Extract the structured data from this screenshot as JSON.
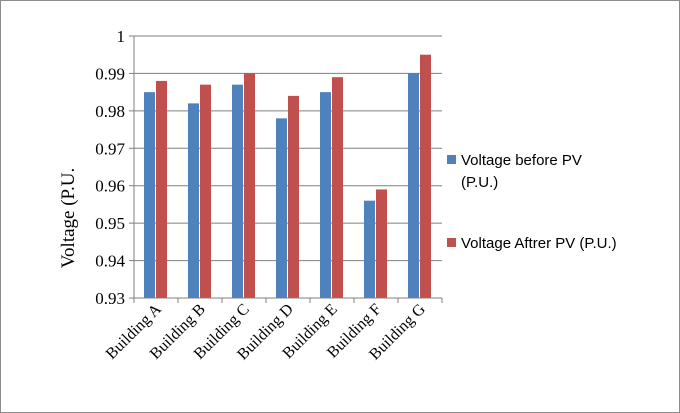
{
  "chart_data": {
    "type": "bar",
    "title": "",
    "xlabel": "",
    "ylabel": "Voltage (P.U.",
    "ylim": [
      0.93,
      1.0
    ],
    "yticks": [
      "0.93",
      "0.94",
      "0.95",
      "0.96",
      "0.97",
      "0.98",
      "0.99",
      "1"
    ],
    "categories": [
      "Building A",
      "Building B",
      "Building C",
      "Building D",
      "Building E",
      "Building F",
      "Building G"
    ],
    "series": [
      {
        "name": "Voltage before PV (P.U.)",
        "color": "#4f81bd",
        "values": [
          0.985,
          0.982,
          0.987,
          0.978,
          0.985,
          0.956,
          0.99
        ]
      },
      {
        "name": "Voltage Aftrer PV (P.U.)",
        "color": "#c0504d",
        "values": [
          0.988,
          0.987,
          0.99,
          0.984,
          0.989,
          0.959,
          0.995
        ]
      }
    ],
    "grid": true,
    "legend": "right",
    "legend_lines": [
      [
        "Voltage before PV",
        "(P.U.)"
      ],
      [
        "Voltage Aftrer PV (P.U.)"
      ]
    ]
  }
}
